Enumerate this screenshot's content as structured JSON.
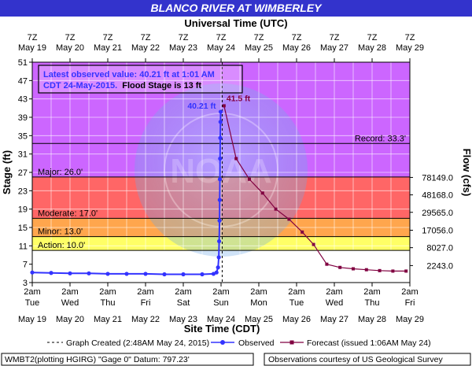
{
  "chart_data": {
    "type": "line",
    "title": "BLANCO RIVER AT WIMBERLEY",
    "top_axis_title": "Universal Time (UTC)",
    "xlabel": "Site Time (CDT)",
    "ylabel": "Stage (ft)",
    "y2label": "Flow (cfs)",
    "ylim": [
      3,
      51
    ],
    "y_ticks": [
      3,
      7,
      11,
      15,
      19,
      23,
      27,
      31,
      35,
      39,
      43,
      47,
      51
    ],
    "grid": true,
    "utc_ticks": [
      {
        "time": "7Z",
        "date": "May 19"
      },
      {
        "time": "7Z",
        "date": "May 20"
      },
      {
        "time": "7Z",
        "date": "May 21"
      },
      {
        "time": "7Z",
        "date": "May 22"
      },
      {
        "time": "7Z",
        "date": "May 23"
      },
      {
        "time": "7Z",
        "date": "May 24"
      },
      {
        "time": "7Z",
        "date": "May 25"
      },
      {
        "time": "7Z",
        "date": "May 26"
      },
      {
        "time": "7Z",
        "date": "May 27"
      },
      {
        "time": "7Z",
        "date": "May 28"
      },
      {
        "time": "7Z",
        "date": "May 29"
      }
    ],
    "cdt_ticks": [
      {
        "time": "2am",
        "day": "Tue",
        "date": "May 19"
      },
      {
        "time": "2am",
        "day": "Wed",
        "date": "May 20"
      },
      {
        "time": "2am",
        "day": "Thu",
        "date": "May 21"
      },
      {
        "time": "2am",
        "day": "Fri",
        "date": "May 22"
      },
      {
        "time": "2am",
        "day": "Sat",
        "date": "May 23"
      },
      {
        "time": "2am",
        "day": "Sun",
        "date": "May 24"
      },
      {
        "time": "2am",
        "day": "Mon",
        "date": "May 25"
      },
      {
        "time": "2am",
        "day": "Tue",
        "date": "May 26"
      },
      {
        "time": "2am",
        "day": "Wed",
        "date": "May 27"
      },
      {
        "time": "2am",
        "day": "Thu",
        "date": "May 28"
      },
      {
        "time": "2am",
        "day": "Fri",
        "date": "May 29"
      }
    ],
    "flow_ticks": [
      {
        "stage": 25.9,
        "label": "78149.0"
      },
      {
        "stage": 22.1,
        "label": "48168.0"
      },
      {
        "stage": 18.3,
        "label": "29565.0"
      },
      {
        "stage": 14.4,
        "label": "17056.0"
      },
      {
        "stage": 10.6,
        "label": "8027.0"
      },
      {
        "stage": 6.7,
        "label": "2243.0"
      }
    ],
    "bands": [
      {
        "name": "Major",
        "from": 26,
        "to": 51,
        "color": "#cc66ff"
      },
      {
        "name": "Moderate",
        "from": 17,
        "to": 26,
        "color": "#ff6666"
      },
      {
        "name": "Minor",
        "from": 13,
        "to": 17,
        "color": "#ffa64d"
      },
      {
        "name": "Action",
        "from": 10,
        "to": 13,
        "color": "#ffff66"
      }
    ],
    "thresholds": [
      {
        "label": "Major: 26.0'",
        "value": 26
      },
      {
        "label": "Moderate: 17.0'",
        "value": 17
      },
      {
        "label": "Minor: 13.0'",
        "value": 13
      },
      {
        "label": "Action: 10.0'",
        "value": 10
      },
      {
        "label": "Record: 33.3'",
        "value": 33.3
      }
    ],
    "x_range_days": [
      0,
      10
    ],
    "graph_created_day": 5.03,
    "series": [
      {
        "name": "Observed",
        "color": "#3333ff",
        "x": [
          0,
          0.5,
          1,
          1.5,
          2,
          2.5,
          3,
          3.5,
          4,
          4.5,
          4.8,
          4.88,
          4.92,
          4.94,
          4.95,
          4.96,
          4.965,
          4.97,
          4.975,
          4.98,
          4.985,
          4.99
        ],
        "y": [
          5.2,
          5.1,
          5.0,
          5.0,
          4.9,
          4.9,
          4.9,
          4.8,
          4.8,
          4.8,
          4.9,
          5.2,
          6.3,
          8.5,
          12.0,
          16.5,
          21.0,
          25.5,
          30.0,
          34.5,
          38.0,
          40.21
        ]
      },
      {
        "name": "Forecast (issued 1:06AM May 24)",
        "color": "#800040",
        "x": [
          5.08,
          5.4,
          5.75,
          6.1,
          6.45,
          6.8,
          7.15,
          7.45,
          7.8,
          8.15,
          8.5,
          8.85,
          9.2,
          9.55,
          9.9
        ],
        "y": [
          41.5,
          30.0,
          25.5,
          22.5,
          19.0,
          16.8,
          14.0,
          11.3,
          7.0,
          6.3,
          6.0,
          5.8,
          5.6,
          5.5,
          5.5
        ]
      }
    ],
    "annotations": [
      {
        "text": "40.21 ft",
        "color": "#3333ff"
      },
      {
        "text": "41.5 ft",
        "color": "#800040"
      }
    ],
    "info_box": {
      "line1": "Latest observed value: 40.21 ft at 1:01 AM",
      "line2_a": "CDT 24-May-2015.",
      "line2_b": "Flood Stage is 13 ft"
    },
    "legend": {
      "graph_created": "Graph Created (2:48AM May 24, 2015)",
      "observed": "Observed",
      "forecast": "Forecast (issued 1:06AM May 24)"
    },
    "footer_left": "WMBT2(plotting HGIRG) \"Gage 0\" Datum: 797.23'",
    "footer_right": "Observations courtesy of US Geological Survey"
  }
}
